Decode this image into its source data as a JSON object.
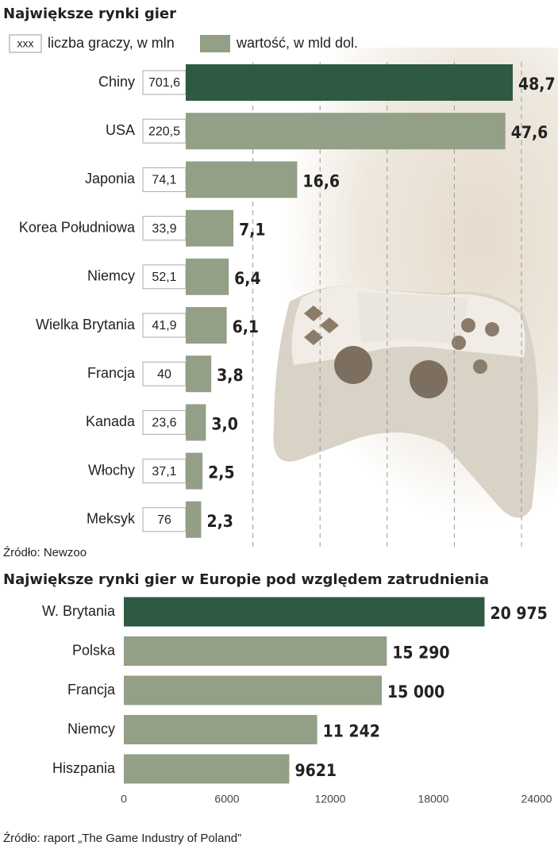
{
  "chart_data": [
    {
      "type": "barh",
      "title": "Największe rynki gier",
      "legend_sample": "xxx",
      "categories": [
        "Chiny",
        "USA",
        "Japonia",
        "Korea Południowa",
        "Niemcy",
        "Wielka Brytania",
        "Francja",
        "Kanada",
        "Włochy",
        "Meksyk"
      ],
      "series": [
        {
          "name": "wartość, w mld dol.",
          "color": "#939f86",
          "colors": [
            "#2f5a42",
            "#939f86",
            "#939f86",
            "#939f86",
            "#939f86",
            "#939f86",
            "#939f86",
            "#939f86",
            "#939f86",
            "#939f86"
          ],
          "values": [
            48.7,
            47.6,
            16.6,
            7.1,
            6.4,
            6.1,
            3.8,
            3.0,
            2.5,
            2.3
          ],
          "value_labels": [
            "48,7",
            "47,6",
            "16,6",
            "7,1",
            "6,4",
            "6,1",
            "3,8",
            "3,0",
            "2,5",
            "2,3"
          ]
        },
        {
          "name": "liczba graczy, w mln",
          "values": [
            701.6,
            220.5,
            74.1,
            33.9,
            52.1,
            41.9,
            40,
            23.6,
            37.1,
            76
          ],
          "value_labels": [
            "701,6",
            "220,5",
            "74,1",
            "33,9",
            "52,1",
            "41,9",
            "40",
            "23,6",
            "37,1",
            "76"
          ]
        }
      ],
      "xlim": [
        0,
        50
      ],
      "xticks": [
        10,
        20,
        30,
        40,
        50
      ],
      "grid": true,
      "source": "Źródło: Newzoo"
    },
    {
      "type": "barh",
      "title": "Największe rynki gier w Europie pod względem zatrudnienia",
      "categories": [
        "W. Brytania",
        "Polska",
        "Francja",
        "Niemcy",
        "Hiszpania"
      ],
      "series": [
        {
          "color": "#939f86",
          "colors": [
            "#2f5a42",
            "#939f86",
            "#939f86",
            "#939f86",
            "#939f86"
          ],
          "values": [
            20975,
            15290,
            15000,
            11242,
            9621
          ],
          "value_labels": [
            "20 975",
            "15 290",
            "15 000",
            "11 242",
            "9621"
          ]
        }
      ],
      "xlim": [
        0,
        24000
      ],
      "xticks": [
        0,
        6000,
        12000,
        18000,
        24000
      ],
      "grid": false,
      "source": "Źródło: raport „The Game Industry of Poland”"
    }
  ]
}
